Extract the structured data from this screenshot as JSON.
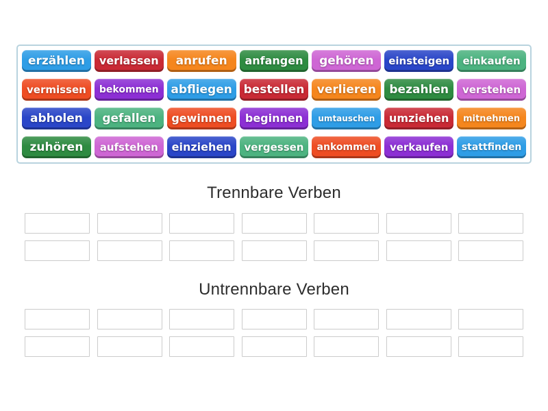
{
  "activity": {
    "type": "group-sort",
    "tile_rows": 4,
    "tiles_per_row": 7
  },
  "palette": {
    "sky": "#2E9DE6",
    "crimson": "#C92A35",
    "orange": "#F5861D",
    "green": "#2E8B41",
    "orchid": "#CE66D4",
    "royal": "#2A46C8",
    "seagreen": "#4CB380",
    "vermilion": "#EE4D23",
    "purple": "#8C2FD4"
  },
  "colors": {
    "pool_border": "#b8d3de",
    "slot_border": "#cbcbcb",
    "title_text": "#2d2d2d",
    "tile_text": "#ffffff",
    "page_background": "#ffffff"
  },
  "tiles": [
    {
      "label": "erzählen",
      "color": "sky"
    },
    {
      "label": "verlassen",
      "color": "crimson"
    },
    {
      "label": "anrufen",
      "color": "orange"
    },
    {
      "label": "anfangen",
      "color": "green"
    },
    {
      "label": "gehören",
      "color": "orchid"
    },
    {
      "label": "einsteigen",
      "color": "royal"
    },
    {
      "label": "einkaufen",
      "color": "seagreen"
    },
    {
      "label": "vermissen",
      "color": "vermilion"
    },
    {
      "label": "bekommen",
      "color": "purple"
    },
    {
      "label": "abfliegen",
      "color": "sky"
    },
    {
      "label": "bestellen",
      "color": "crimson"
    },
    {
      "label": "verlieren",
      "color": "orange"
    },
    {
      "label": "bezahlen",
      "color": "green"
    },
    {
      "label": "verstehen",
      "color": "orchid"
    },
    {
      "label": "abholen",
      "color": "royal"
    },
    {
      "label": "gefallen",
      "color": "seagreen"
    },
    {
      "label": "gewinnen",
      "color": "vermilion"
    },
    {
      "label": "beginnen",
      "color": "purple"
    },
    {
      "label": "umtauschen",
      "color": "sky"
    },
    {
      "label": "umziehen",
      "color": "crimson"
    },
    {
      "label": "mitnehmen",
      "color": "orange"
    },
    {
      "label": "zuhören",
      "color": "green"
    },
    {
      "label": "aufstehen",
      "color": "orchid"
    },
    {
      "label": "einziehen",
      "color": "royal"
    },
    {
      "label": "vergessen",
      "color": "seagreen"
    },
    {
      "label": "ankommen",
      "color": "vermilion"
    },
    {
      "label": "verkaufen",
      "color": "purple"
    },
    {
      "label": "stattfinden",
      "color": "sky"
    }
  ],
  "groups": [
    {
      "title": "Trennbare Verben",
      "slot_count": 14
    },
    {
      "title": "Untrennbare Verben",
      "slot_count": 14
    }
  ]
}
